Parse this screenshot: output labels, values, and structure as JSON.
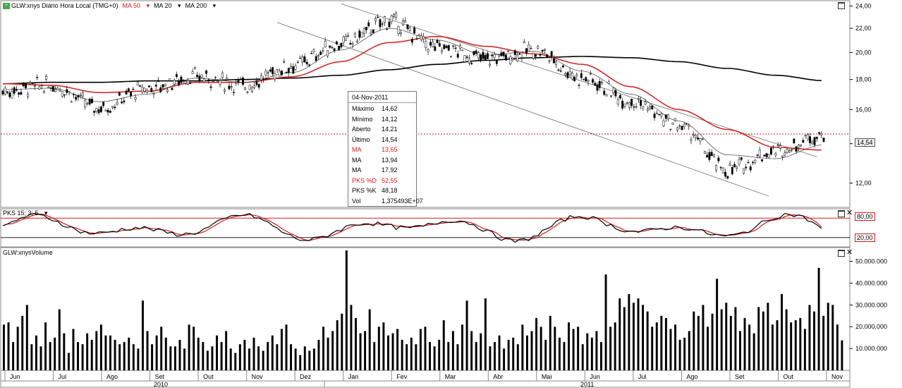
{
  "header": {
    "title": "GLW:xnys Diário Hora Local (TMG+0)",
    "ma50": "MA 50",
    "ma20": "MA 20",
    "ma200": "MA 200",
    "indicator_title": "PKS 15; 3; 5",
    "volume_title": "GLW:xnysVolume"
  },
  "tooltip": {
    "date": "04-Nov-2011",
    "rows": [
      {
        "label": "Máximo",
        "value": "14,62",
        "color": "#000000"
      },
      {
        "label": "Mínimo",
        "value": "14,12",
        "color": "#000000"
      },
      {
        "label": "Aberto",
        "value": "14,21",
        "color": "#000000"
      },
      {
        "label": "Último",
        "value": "14,54",
        "color": "#000000"
      },
      {
        "label": "MA",
        "value": "13,65",
        "color": "#d11c1c"
      },
      {
        "label": "MA",
        "value": "13,94",
        "color": "#000000"
      },
      {
        "label": "MA",
        "value": "17,92",
        "color": "#000000"
      },
      {
        "label": "PKS %D",
        "value": "52,55",
        "color": "#d11c1c"
      },
      {
        "label": "PKS %K",
        "value": "48,18",
        "color": "#000000"
      },
      {
        "label": "Vol",
        "value": "1,375493E+07",
        "color": "#000000"
      }
    ]
  },
  "price_axis": {
    "ticks": [
      "24,00",
      "22,00",
      "20,00",
      "18,00",
      "16,00",
      "14,00",
      "12,00"
    ],
    "current_tag": "14,54"
  },
  "indicator_axis": {
    "overbought": "80,00",
    "oversold": "20,00"
  },
  "volume_axis": {
    "ticks": [
      "50.000.000",
      "40.000.000",
      "30.000.000",
      "20.000.000",
      "10.000.000"
    ]
  },
  "x_axis": {
    "months": [
      "Jun",
      "Jul",
      "Ago",
      "Set",
      "Out",
      "Nov",
      "Dez",
      "Jan",
      "Fev",
      "Mar",
      "Abr",
      "Mai",
      "Jun",
      "Jul",
      "Ago",
      "Set",
      "Out",
      "Nov"
    ],
    "years": [
      "2010",
      "2011"
    ]
  },
  "chart_data": [
    {
      "type": "candlestick",
      "title": "GLW:xnys Diário Hora Local (TMG+0)",
      "x_range": [
        "Jun 2010",
        "Nov 2011"
      ],
      "ylim": [
        11.0,
        24.3
      ],
      "y_scale": "log",
      "grid": false,
      "series": [
        {
          "name": "GLW:xnys",
          "monthly_close": [
            17.2,
            17.6,
            16.1,
            17.4,
            18.2,
            17.6,
            19.0,
            20.7,
            22.6,
            20.4,
            19.5,
            20.2,
            18.1,
            16.6,
            15.0,
            12.6,
            13.6,
            14.54
          ]
        },
        {
          "name": "MA 50",
          "color": "#d11c1c",
          "monthly": [
            17.7,
            17.6,
            17.1,
            17.2,
            17.8,
            17.8,
            18.2,
            19.3,
            20.8,
            21.3,
            20.5,
            19.9,
            19.1,
            17.5,
            16.0,
            14.8,
            13.8,
            13.65
          ]
        },
        {
          "name": "MA 20",
          "color": "#555555",
          "monthly": [
            17.3,
            17.4,
            16.5,
            17.0,
            18.1,
            17.8,
            18.5,
            20.2,
            22.0,
            21.0,
            19.8,
            20.1,
            18.6,
            17.0,
            15.3,
            13.4,
            13.2,
            13.94
          ]
        },
        {
          "name": "MA 200",
          "color": "#000000",
          "monthly": [
            17.7,
            17.8,
            17.8,
            17.9,
            17.9,
            18.0,
            18.1,
            18.3,
            18.7,
            19.1,
            19.4,
            19.6,
            19.7,
            19.6,
            19.3,
            18.8,
            18.3,
            17.92
          ]
        }
      ],
      "last": {
        "date": "04-Nov-2011",
        "high": 14.62,
        "low": 14.12,
        "open": 14.21,
        "close": 14.54
      }
    },
    {
      "type": "line",
      "title": "PKS 15; 3; 5",
      "ylim": [
        0,
        100
      ],
      "levels": [
        80,
        20
      ],
      "series": [
        {
          "name": "PKS %K",
          "color": "#000000",
          "last": 48.18
        },
        {
          "name": "PKS %D",
          "color": "#d11c1c",
          "last": 52.55
        }
      ]
    },
    {
      "type": "bar",
      "title": "GLW:xnysVolume",
      "ylim": [
        0,
        55000000
      ],
      "values": [
        21000000,
        22000000,
        13000000,
        20000000,
        25000000,
        30000000,
        12000000,
        16000000,
        11000000,
        22000000,
        13000000,
        15000000,
        28000000,
        17000000,
        8000000,
        19000000,
        13000000,
        12000000,
        17000000,
        14000000,
        18000000,
        21000000,
        16000000,
        16000000,
        14000000,
        12000000,
        13000000,
        15000000,
        12000000,
        10000000,
        32000000,
        18000000,
        12000000,
        16000000,
        20000000,
        15000000,
        11000000,
        11000000,
        14000000,
        10000000,
        21000000,
        20000000,
        15000000,
        13000000,
        9000000,
        11000000,
        16000000,
        13000000,
        18000000,
        10000000,
        8000000,
        12000000,
        14000000,
        10000000,
        15000000,
        11000000,
        9000000,
        13000000,
        16000000,
        12000000,
        19000000,
        21000000,
        12000000,
        10000000,
        7000000,
        11000000,
        9000000,
        10000000,
        14000000,
        20000000,
        15000000,
        18000000,
        23000000,
        26000000,
        55000000,
        30000000,
        24000000,
        17000000,
        18000000,
        28000000,
        13000000,
        20000000,
        22000000,
        16000000,
        17000000,
        19000000,
        14000000,
        12000000,
        15000000,
        12000000,
        19000000,
        20000000,
        13000000,
        11000000,
        14000000,
        23000000,
        13000000,
        18000000,
        12000000,
        21000000,
        32000000,
        18000000,
        13000000,
        17000000,
        33000000,
        11000000,
        13000000,
        16000000,
        10000000,
        14000000,
        15000000,
        12000000,
        21000000,
        16000000,
        18000000,
        24000000,
        20000000,
        14000000,
        25000000,
        20000000,
        15000000,
        13000000,
        22000000,
        19000000,
        20000000,
        12000000,
        17000000,
        15000000,
        18000000,
        13000000,
        44000000,
        20000000,
        22000000,
        33000000,
        29000000,
        35000000,
        31000000,
        33000000,
        30000000,
        27000000,
        20000000,
        22000000,
        25000000,
        24000000,
        19000000,
        21000000,
        14000000,
        15000000,
        18000000,
        27000000,
        25000000,
        30000000,
        20000000,
        26000000,
        42000000,
        28000000,
        31000000,
        25000000,
        29000000,
        18000000,
        24000000,
        21000000,
        17000000,
        29000000,
        27000000,
        31000000,
        21000000,
        23000000,
        35000000,
        28000000,
        22000000,
        23000000,
        24000000,
        19000000,
        30000000,
        27000000,
        47000000,
        25000000,
        31000000,
        30000000,
        21000000,
        13750000
      ]
    }
  ]
}
